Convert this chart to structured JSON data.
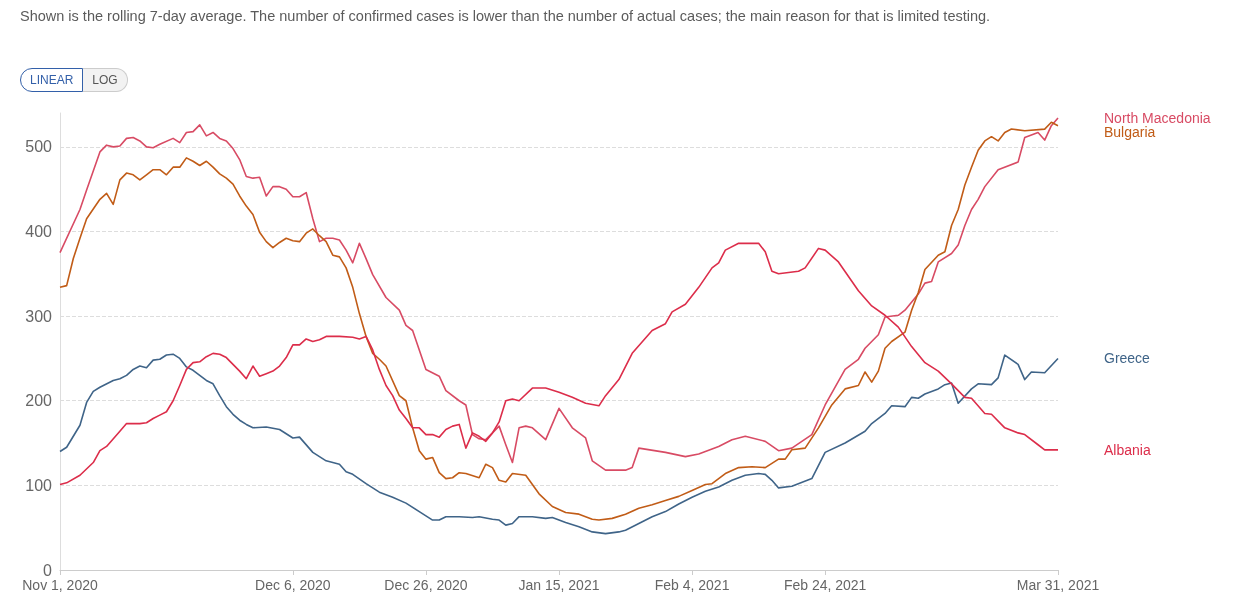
{
  "chart_data": {
    "type": "line",
    "subtitle": "Shown is the rolling 7-day average. The number of confirmed cases is lower than the number of actual cases; the main reason for that is limited testing.",
    "annotations": [
      "LINEAR",
      "LOG"
    ],
    "xlim": [
      "2020-11-01",
      "2021-03-31"
    ],
    "xticks": [
      {
        "value": "2020-11-01",
        "label": "Nov 1, 2020"
      },
      {
        "value": "2020-12-06",
        "label": "Dec 6, 2020"
      },
      {
        "value": "2020-12-26",
        "label": "Dec 26, 2020"
      },
      {
        "value": "2021-01-15",
        "label": "Jan 15, 2021"
      },
      {
        "value": "2021-02-04",
        "label": "Feb 4, 2021"
      },
      {
        "value": "2021-02-24",
        "label": "Feb 24, 2021"
      },
      {
        "value": "2021-03-31",
        "label": "Mar 31, 2021"
      }
    ],
    "ylim": [
      0,
      540
    ],
    "yticks": [
      0,
      100,
      200,
      300,
      400,
      500
    ],
    "grid": "y",
    "legend": false,
    "marker": "none",
    "line_style": "solid",
    "series": [
      {
        "name": "North Macedonia",
        "color": "#d84b64",
        "x": [
          "2020-11-01",
          "2020-11-04",
          "2020-11-05",
          "2020-11-07",
          "2020-11-08",
          "2020-11-09",
          "2020-11-10",
          "2020-11-11",
          "2020-11-12",
          "2020-11-13",
          "2020-11-14",
          "2020-11-15",
          "2020-11-16",
          "2020-11-18",
          "2020-11-19",
          "2020-11-20",
          "2020-11-21",
          "2020-11-22",
          "2020-11-23",
          "2020-11-24",
          "2020-11-25",
          "2020-11-26",
          "2020-11-27",
          "2020-11-28",
          "2020-11-29",
          "2020-11-30",
          "2020-12-01",
          "2020-12-02",
          "2020-12-03",
          "2020-12-04",
          "2020-12-05",
          "2020-12-06",
          "2020-12-07",
          "2020-12-08",
          "2020-12-09",
          "2020-12-10",
          "2020-12-11",
          "2020-12-12",
          "2020-12-13",
          "2020-12-14",
          "2020-12-15",
          "2020-12-16",
          "2020-12-17",
          "2020-12-18",
          "2020-12-20",
          "2020-12-22",
          "2020-12-23",
          "2020-12-24",
          "2020-12-26",
          "2020-12-28",
          "2020-12-29",
          "2020-12-31",
          "2021-01-01",
          "2021-01-02",
          "2021-01-03",
          "2021-01-04",
          "2021-01-05",
          "2021-01-06",
          "2021-01-07",
          "2021-01-08",
          "2021-01-09",
          "2021-01-10",
          "2021-01-11",
          "2021-01-13",
          "2021-01-15",
          "2021-01-17",
          "2021-01-19",
          "2021-01-20",
          "2021-01-22",
          "2021-01-25",
          "2021-01-26",
          "2021-01-27",
          "2021-01-31",
          "2021-02-03",
          "2021-02-05",
          "2021-02-08",
          "2021-02-10",
          "2021-02-12",
          "2021-02-15",
          "2021-02-17",
          "2021-02-19",
          "2021-02-22",
          "2021-02-24",
          "2021-02-27",
          "2021-03-01",
          "2021-03-02",
          "2021-03-04",
          "2021-03-05",
          "2021-03-07",
          "2021-03-08",
          "2021-03-10",
          "2021-03-11",
          "2021-03-12",
          "2021-03-13",
          "2021-03-15",
          "2021-03-16",
          "2021-03-17",
          "2021-03-18",
          "2021-03-19",
          "2021-03-20",
          "2021-03-22",
          "2021-03-25",
          "2021-03-26",
          "2021-03-28",
          "2021-03-29",
          "2021-03-30",
          "2021-03-31"
        ],
        "values": [
          375,
          426,
          449,
          494,
          502,
          500,
          501,
          510,
          511,
          507,
          500,
          499,
          503,
          510,
          505,
          517,
          518,
          526,
          513,
          517,
          510,
          507,
          498,
          485,
          465,
          463,
          464,
          442,
          453,
          453,
          450,
          441,
          441,
          446,
          415,
          388,
          392,
          392,
          390,
          378,
          363,
          386,
          368,
          349,
          322,
          307,
          289,
          283,
          237,
          229,
          212,
          200,
          195,
          160,
          155,
          154,
          162,
          170,
          148,
          127,
          168,
          170,
          168,
          154,
          191,
          168,
          156,
          129,
          118,
          118,
          121,
          144,
          139,
          134,
          137,
          146,
          154,
          158,
          152,
          141,
          144,
          160,
          195,
          237,
          249,
          262,
          278,
          299,
          301,
          307,
          326,
          339,
          341,
          364,
          374,
          384,
          407,
          426,
          438,
          453,
          473,
          482,
          511,
          517,
          508,
          525,
          534
        ]
      },
      {
        "name": "Bulgaria",
        "color": "#c15c17",
        "x": [
          "2020-11-01",
          "2020-11-02",
          "2020-11-03",
          "2020-11-04",
          "2020-11-05",
          "2020-11-07",
          "2020-11-08",
          "2020-11-09",
          "2020-11-10",
          "2020-11-11",
          "2020-11-12",
          "2020-11-13",
          "2020-11-14",
          "2020-11-15",
          "2020-11-16",
          "2020-11-17",
          "2020-11-18",
          "2020-11-19",
          "2020-11-20",
          "2020-11-21",
          "2020-11-22",
          "2020-11-23",
          "2020-11-24",
          "2020-11-25",
          "2020-11-26",
          "2020-11-27",
          "2020-11-28",
          "2020-11-29",
          "2020-11-30",
          "2020-12-01",
          "2020-12-02",
          "2020-12-03",
          "2020-12-04",
          "2020-12-05",
          "2020-12-06",
          "2020-12-07",
          "2020-12-08",
          "2020-12-09",
          "2020-12-10",
          "2020-12-11",
          "2020-12-12",
          "2020-12-13",
          "2020-12-14",
          "2020-12-15",
          "2020-12-16",
          "2020-12-17",
          "2020-12-18",
          "2020-12-19",
          "2020-12-20",
          "2020-12-22",
          "2020-12-23",
          "2020-12-24",
          "2020-12-25",
          "2020-12-26",
          "2020-12-27",
          "2020-12-28",
          "2020-12-29",
          "2020-12-30",
          "2020-12-31",
          "2021-01-01",
          "2021-01-03",
          "2021-01-04",
          "2021-01-05",
          "2021-01-06",
          "2021-01-07",
          "2021-01-08",
          "2021-01-10",
          "2021-01-12",
          "2021-01-14",
          "2021-01-16",
          "2021-01-18",
          "2021-01-20",
          "2021-01-21",
          "2021-01-23",
          "2021-01-25",
          "2021-01-27",
          "2021-01-29",
          "2021-01-31",
          "2021-02-02",
          "2021-02-04",
          "2021-02-06",
          "2021-02-07",
          "2021-02-09",
          "2021-02-11",
          "2021-02-13",
          "2021-02-15",
          "2021-02-17",
          "2021-02-18",
          "2021-02-19",
          "2021-02-21",
          "2021-02-23",
          "2021-02-25",
          "2021-02-27",
          "2021-03-01",
          "2021-03-02",
          "2021-03-03",
          "2021-03-04",
          "2021-03-05",
          "2021-03-06",
          "2021-03-08",
          "2021-03-09",
          "2021-03-10",
          "2021-03-11",
          "2021-03-13",
          "2021-03-14",
          "2021-03-15",
          "2021-03-16",
          "2021-03-17",
          "2021-03-18",
          "2021-03-19",
          "2021-03-20",
          "2021-03-21",
          "2021-03-22",
          "2021-03-23",
          "2021-03-24",
          "2021-03-26",
          "2021-03-29",
          "2021-03-30",
          "2021-03-31"
        ],
        "values": [
          334,
          336,
          368,
          392,
          415,
          438,
          445,
          432,
          461,
          469,
          467,
          461,
          467,
          473,
          473,
          467,
          476,
          476,
          487,
          483,
          478,
          483,
          476,
          468,
          463,
          456,
          442,
          430,
          420,
          399,
          388,
          381,
          387,
          392,
          389,
          388,
          398,
          403,
          395,
          388,
          372,
          370,
          357,
          334,
          303,
          276,
          256,
          249,
          241,
          206,
          200,
          168,
          141,
          131,
          133,
          115,
          108,
          109,
          115,
          114,
          109,
          125,
          121,
          106,
          104,
          114,
          112,
          90,
          75,
          68,
          66,
          60,
          59,
          61,
          66,
          73,
          77,
          82,
          87,
          94,
          101,
          102,
          114,
          121,
          122,
          121,
          131,
          131,
          142,
          144,
          168,
          195,
          214,
          218,
          234,
          222,
          235,
          262,
          270,
          281,
          307,
          328,
          355,
          372,
          376,
          407,
          426,
          455,
          476,
          496,
          507,
          512,
          507,
          517,
          521,
          519,
          521,
          529,
          525
        ]
      },
      {
        "name": "Greece",
        "color": "#3f6488",
        "x": [
          "2020-11-01",
          "2020-11-02",
          "2020-11-04",
          "2020-11-05",
          "2020-11-06",
          "2020-11-07",
          "2020-11-09",
          "2020-11-10",
          "2020-11-11",
          "2020-11-12",
          "2020-11-13",
          "2020-11-14",
          "2020-11-15",
          "2020-11-16",
          "2020-11-17",
          "2020-11-18",
          "2020-11-19",
          "2020-11-20",
          "2020-11-21",
          "2020-11-23",
          "2020-11-24",
          "2020-11-25",
          "2020-11-26",
          "2020-11-27",
          "2020-11-28",
          "2020-11-29",
          "2020-11-30",
          "2020-12-02",
          "2020-12-04",
          "2020-12-06",
          "2020-12-07",
          "2020-12-09",
          "2020-12-11",
          "2020-12-13",
          "2020-12-14",
          "2020-12-15",
          "2020-12-17",
          "2020-12-19",
          "2020-12-21",
          "2020-12-23",
          "2020-12-25",
          "2020-12-27",
          "2020-12-28",
          "2020-12-29",
          "2020-12-31",
          "2021-01-02",
          "2021-01-03",
          "2021-01-05",
          "2021-01-06",
          "2021-01-07",
          "2021-01-08",
          "2021-01-09",
          "2021-01-11",
          "2021-01-13",
          "2021-01-14",
          "2021-01-16",
          "2021-01-18",
          "2021-01-20",
          "2021-01-22",
          "2021-01-24",
          "2021-01-25",
          "2021-01-27",
          "2021-01-29",
          "2021-01-31",
          "2021-02-02",
          "2021-02-04",
          "2021-02-06",
          "2021-02-08",
          "2021-02-10",
          "2021-02-12",
          "2021-02-14",
          "2021-02-15",
          "2021-02-16",
          "2021-02-17",
          "2021-02-19",
          "2021-02-22",
          "2021-02-24",
          "2021-02-27",
          "2021-03-02",
          "2021-03-03",
          "2021-03-05",
          "2021-03-06",
          "2021-03-08",
          "2021-03-09",
          "2021-03-10",
          "2021-03-11",
          "2021-03-13",
          "2021-03-14",
          "2021-03-15",
          "2021-03-16",
          "2021-03-18",
          "2021-03-19",
          "2021-03-21",
          "2021-03-22",
          "2021-03-23",
          "2021-03-25",
          "2021-03-26",
          "2021-03-27",
          "2021-03-29",
          "2021-03-31"
        ],
        "values": [
          140,
          145,
          171,
          198,
          211,
          216,
          224,
          226,
          230,
          237,
          241,
          239,
          248,
          249,
          254,
          255,
          250,
          240,
          236,
          224,
          220,
          206,
          193,
          184,
          177,
          172,
          168,
          169,
          166,
          156,
          157,
          139,
          129,
          125,
          116,
          113,
          102,
          92,
          86,
          79,
          69,
          59,
          59,
          63,
          63,
          62,
          63,
          60,
          59,
          53,
          55,
          63,
          63,
          61,
          62,
          56,
          51,
          45,
          43,
          45,
          47,
          55,
          63,
          69,
          78,
          86,
          93,
          98,
          106,
          112,
          114,
          113,
          106,
          97,
          99,
          108,
          139,
          150,
          164,
          173,
          185,
          194,
          193,
          204,
          203,
          208,
          214,
          219,
          221,
          197,
          214,
          220,
          219,
          227,
          254,
          243,
          225,
          234,
          233,
          250
        ]
      },
      {
        "name": "Albania",
        "color": "#dc2d4a",
        "x": [
          "2020-11-01",
          "2020-11-02",
          "2020-11-04",
          "2020-11-06",
          "2020-11-07",
          "2020-11-08",
          "2020-11-10",
          "2020-11-11",
          "2020-11-13",
          "2020-11-14",
          "2020-11-15",
          "2020-11-16",
          "2020-11-17",
          "2020-11-18",
          "2020-11-19",
          "2020-11-20",
          "2020-11-21",
          "2020-11-22",
          "2020-11-23",
          "2020-11-24",
          "2020-11-25",
          "2020-11-26",
          "2020-11-27",
          "2020-11-28",
          "2020-11-29",
          "2020-11-30",
          "2020-12-01",
          "2020-12-02",
          "2020-12-03",
          "2020-12-04",
          "2020-12-05",
          "2020-12-06",
          "2020-12-07",
          "2020-12-08",
          "2020-12-09",
          "2020-12-10",
          "2020-12-11",
          "2020-12-13",
          "2020-12-15",
          "2020-12-16",
          "2020-12-17",
          "2020-12-18",
          "2020-12-19",
          "2020-12-20",
          "2020-12-21",
          "2020-12-22",
          "2020-12-23",
          "2020-12-24",
          "2020-12-25",
          "2020-12-26",
          "2020-12-27",
          "2020-12-28",
          "2020-12-29",
          "2020-12-30",
          "2020-12-31",
          "2021-01-01",
          "2021-01-02",
          "2021-01-03",
          "2021-01-04",
          "2021-01-05",
          "2021-01-06",
          "2021-01-07",
          "2021-01-08",
          "2021-01-09",
          "2021-01-11",
          "2021-01-13",
          "2021-01-15",
          "2021-01-17",
          "2021-01-19",
          "2021-01-21",
          "2021-01-22",
          "2021-01-24",
          "2021-01-26",
          "2021-01-29",
          "2021-01-31",
          "2021-02-01",
          "2021-02-03",
          "2021-02-05",
          "2021-02-07",
          "2021-02-08",
          "2021-02-09",
          "2021-02-11",
          "2021-02-14",
          "2021-02-15",
          "2021-02-16",
          "2021-02-17",
          "2021-02-20",
          "2021-02-21",
          "2021-02-23",
          "2021-02-24",
          "2021-02-26",
          "2021-03-01",
          "2021-03-03",
          "2021-03-05",
          "2021-03-07",
          "2021-03-09",
          "2021-03-11",
          "2021-03-13",
          "2021-03-15",
          "2021-03-17",
          "2021-03-18",
          "2021-03-20",
          "2021-03-21",
          "2021-03-23",
          "2021-03-25",
          "2021-03-26",
          "2021-03-28",
          "2021-03-29",
          "2021-03-31"
        ],
        "values": [
          101,
          103,
          112,
          127,
          141,
          146,
          164,
          173,
          173,
          174,
          179,
          183,
          187,
          200,
          218,
          237,
          245,
          246,
          252,
          256,
          255,
          251,
          243,
          235,
          226,
          241,
          229,
          232,
          235,
          241,
          251,
          266,
          266,
          273,
          270,
          272,
          276,
          276,
          275,
          273,
          276,
          260,
          237,
          218,
          206,
          189,
          179,
          168,
          168,
          160,
          160,
          157,
          166,
          170,
          172,
          144,
          162,
          158,
          152,
          162,
          175,
          200,
          202,
          200,
          215,
          215,
          210,
          204,
          197,
          194,
          206,
          225,
          256,
          283,
          291,
          305,
          314,
          334,
          357,
          363,
          378,
          386,
          386,
          376,
          353,
          350,
          353,
          357,
          380,
          378,
          364,
          330,
          312,
          301,
          287,
          264,
          245,
          235,
          220,
          204,
          203,
          185,
          184,
          168,
          162,
          160,
          148,
          142,
          142
        ]
      }
    ]
  }
}
